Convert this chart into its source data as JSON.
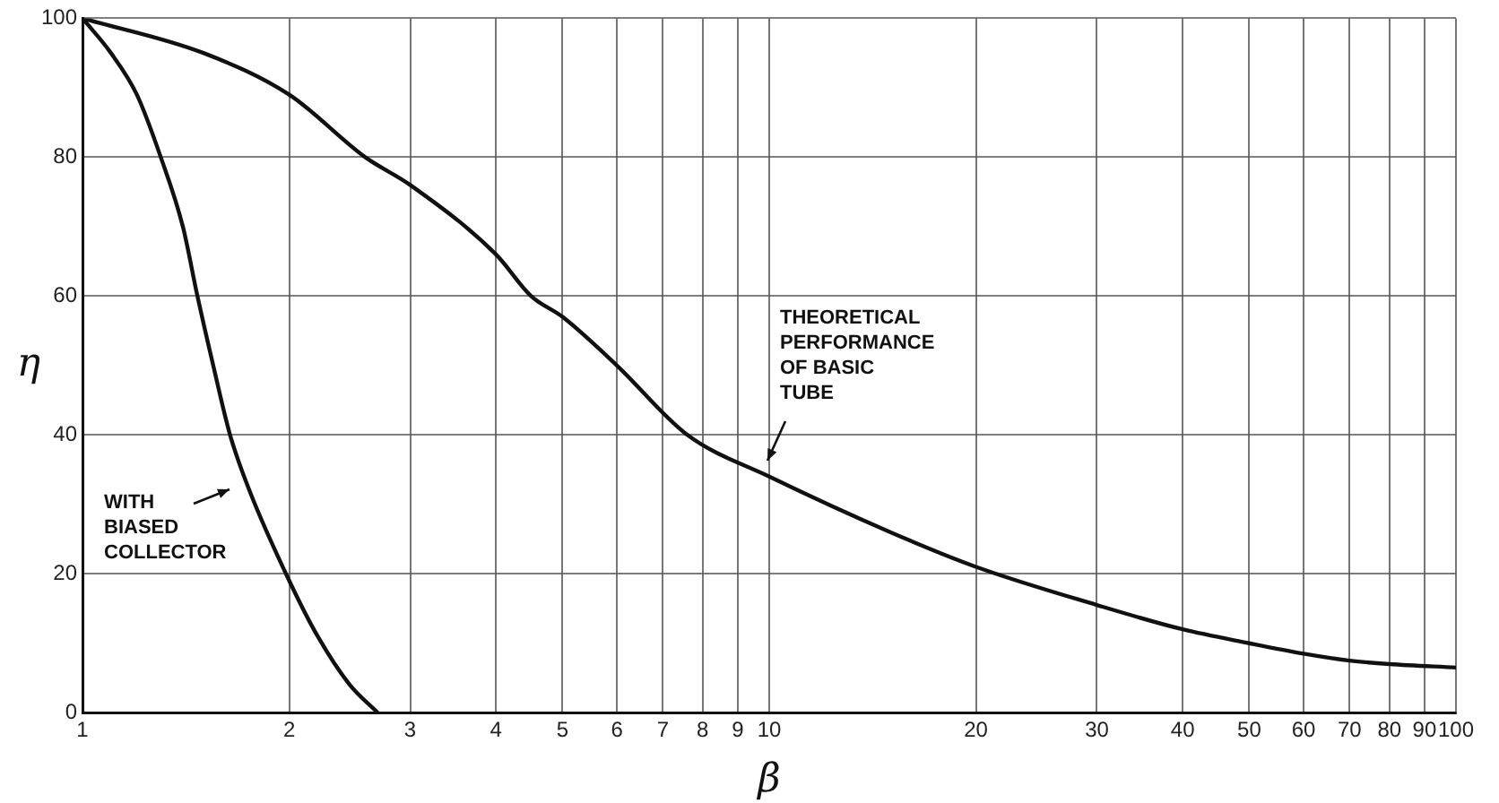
{
  "chart_data": {
    "type": "line",
    "xlabel": "β",
    "ylabel": "η",
    "log": "x",
    "grid": true,
    "legend": false,
    "marker": "none",
    "line_style": "solid",
    "xlim": [
      1,
      100
    ],
    "ylim": [
      0,
      100
    ],
    "xticks": [
      1,
      2,
      3,
      4,
      5,
      6,
      7,
      8,
      9,
      10,
      20,
      30,
      40,
      50,
      60,
      70,
      80,
      90,
      100
    ],
    "yticks": [
      0,
      20,
      40,
      60,
      80,
      100
    ],
    "series": [
      {
        "color": "#111111",
        "x": [
          1,
          1.5,
          2,
          2.58,
          3,
          4,
          4.5,
          5,
          6,
          7.6,
          10,
          15,
          20,
          30,
          40,
          50,
          60,
          70,
          80,
          100
        ],
        "values": [
          100,
          95,
          89,
          80,
          76,
          66,
          60,
          57,
          50,
          40,
          34,
          26,
          21,
          15.5,
          12,
          10,
          8.5,
          7.5,
          7,
          6.5
        ]
      },
      {
        "color": "#111111",
        "x": [
          1,
          1.1,
          1.2,
          1.3,
          1.4,
          1.47,
          1.55,
          1.64,
          1.75,
          2,
          2.2,
          2.45,
          2.69
        ],
        "values": [
          100,
          95,
          89,
          80,
          70,
          60,
          50,
          40,
          32,
          19,
          11,
          4,
          0
        ]
      }
    ],
    "annotations": [
      "WITH\nBIASED\nCOLLECTOR",
      "THEORETICAL\nPERFORMANCE\nOF BASIC\nTUBE"
    ]
  }
}
